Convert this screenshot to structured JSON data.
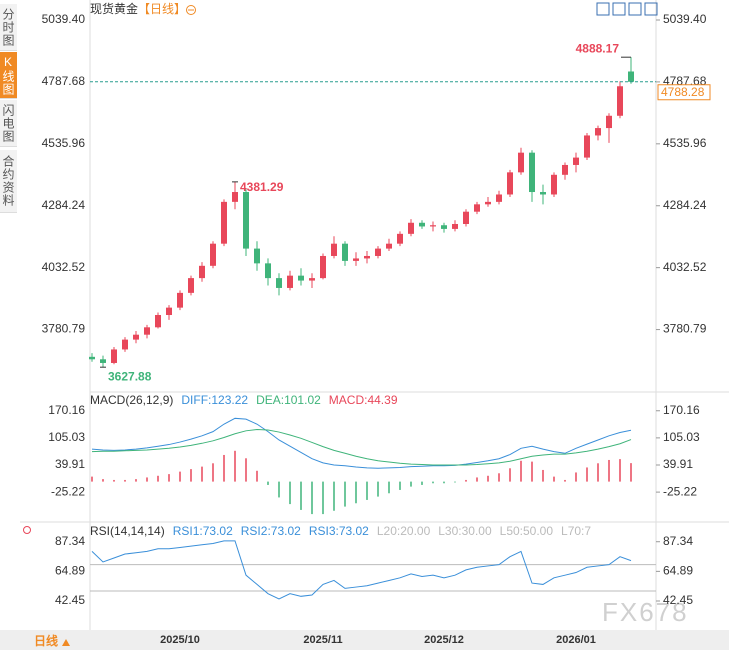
{
  "tabs": [
    "分时图",
    "K线图",
    "闪电图",
    "合约资料"
  ],
  "period_button": "日线",
  "watermark": "FX678",
  "chart_data": [
    {
      "type": "candlestick",
      "title": "现货黄金",
      "subtitle": "【日线】",
      "categories": [
        null,
        null,
        null,
        null,
        null,
        null,
        null,
        null,
        "2025/10",
        null,
        null,
        null,
        null,
        null,
        null,
        null,
        null,
        null,
        null,
        null,
        null,
        "2025/11",
        null,
        null,
        null,
        null,
        null,
        null,
        null,
        null,
        null,
        null,
        "2025/12",
        null,
        null,
        null,
        null,
        null,
        null,
        null,
        null,
        null,
        null,
        null,
        "2026/01",
        null,
        null,
        null,
        null,
        null
      ],
      "candles": [
        [
          3670,
          3685,
          3650,
          3660
        ],
        [
          3660,
          3675,
          3627.88,
          3645
        ],
        [
          3645,
          3710,
          3640,
          3700
        ],
        [
          3700,
          3750,
          3690,
          3740
        ],
        [
          3740,
          3775,
          3725,
          3760
        ],
        [
          3760,
          3800,
          3745,
          3790
        ],
        [
          3790,
          3850,
          3785,
          3840
        ],
        [
          3840,
          3880,
          3820,
          3870
        ],
        [
          3870,
          3940,
          3860,
          3930
        ],
        [
          3930,
          4000,
          3920,
          3990
        ],
        [
          3990,
          4055,
          3975,
          4040
        ],
        [
          4040,
          4140,
          4030,
          4130
        ],
        [
          4130,
          4310,
          4120,
          4300
        ],
        [
          4300,
          4381.29,
          4270,
          4340
        ],
        [
          4340,
          4350,
          4080,
          4110
        ],
        [
          4110,
          4140,
          4020,
          4050
        ],
        [
          4050,
          4070,
          3960,
          3990
        ],
        [
          3990,
          4010,
          3920,
          3950
        ],
        [
          3950,
          4020,
          3940,
          4000
        ],
        [
          4000,
          4030,
          3960,
          3980
        ],
        [
          3980,
          4010,
          3950,
          3990
        ],
        [
          3990,
          4090,
          3985,
          4080
        ],
        [
          4080,
          4160,
          4070,
          4130
        ],
        [
          4130,
          4140,
          4040,
          4060
        ],
        [
          4060,
          4095,
          4040,
          4070
        ],
        [
          4070,
          4100,
          4050,
          4080
        ],
        [
          4080,
          4120,
          4070,
          4110
        ],
        [
          4110,
          4150,
          4100,
          4130
        ],
        [
          4130,
          4180,
          4120,
          4170
        ],
        [
          4170,
          4230,
          4160,
          4215
        ],
        [
          4215,
          4225,
          4190,
          4200
        ],
        [
          4200,
          4220,
          4180,
          4205
        ],
        [
          4205,
          4215,
          4175,
          4190
        ],
        [
          4190,
          4225,
          4180,
          4210
        ],
        [
          4210,
          4270,
          4200,
          4260
        ],
        [
          4260,
          4300,
          4250,
          4290
        ],
        [
          4290,
          4320,
          4280,
          4300
        ],
        [
          4300,
          4345,
          4290,
          4330
        ],
        [
          4330,
          4430,
          4320,
          4420
        ],
        [
          4420,
          4520,
          4410,
          4500
        ],
        [
          4500,
          4510,
          4300,
          4340
        ],
        [
          4340,
          4370,
          4290,
          4330
        ],
        [
          4330,
          4420,
          4320,
          4410
        ],
        [
          4410,
          4460,
          4390,
          4450
        ],
        [
          4450,
          4500,
          4420,
          4480
        ],
        [
          4480,
          4580,
          4470,
          4570
        ],
        [
          4570,
          4610,
          4550,
          4600
        ],
        [
          4600,
          4660,
          4540,
          4650
        ],
        [
          4650,
          4790,
          4640,
          4770
        ],
        [
          4830,
          4888.17,
          4780,
          4788.28
        ]
      ],
      "up_color": "#e8475a",
      "down_color": "#3fb47a",
      "annotations": [
        4888.17,
        4381.29,
        3627.88
      ],
      "last_price": 4788.28,
      "last_price_color": "#2a9d8f",
      "ylim": [
        3527,
        5080
      ],
      "yticks": [
        {
          "value": 5039.4,
          "label": "5039.40"
        },
        4787.68,
        4535.96,
        4284.24,
        4032.52,
        3780.79
      ]
    },
    {
      "type": "macd",
      "title": "MACD(26,12,9)",
      "series": [
        {
          "name": "DIFF:123.22",
          "color": "#3a8fd9",
          "values": [
            78,
            76,
            75,
            76,
            78,
            81,
            85,
            89,
            95,
            102,
            110,
            120,
            138,
            152,
            150,
            138,
            120,
            100,
            85,
            70,
            55,
            45,
            40,
            38,
            35,
            33,
            32,
            33,
            34,
            36,
            37,
            38,
            38,
            39,
            42,
            46,
            50,
            55,
            65,
            80,
            85,
            78,
            72,
            68,
            80,
            90,
            100,
            110,
            118,
            123.22
          ]
        },
        {
          "name": "DEA:101.02",
          "color": "#3fb47a",
          "values": [
            72,
            73,
            73,
            74,
            75,
            76,
            78,
            80,
            83,
            87,
            92,
            98,
            106,
            115,
            122,
            125,
            124,
            119,
            112,
            104,
            94,
            84,
            75,
            68,
            61,
            55,
            50,
            47,
            44,
            42,
            41,
            40,
            40,
            40,
            40,
            41,
            43,
            45,
            49,
            55,
            61,
            64,
            66,
            66,
            69,
            73,
            78,
            84,
            91,
            101.02
          ]
        },
        {
          "name": "MACD:44.39",
          "color": "#e8475a",
          "down_color": "#3fb47a",
          "values": [
            12,
            6,
            4,
            4,
            6,
            10,
            14,
            18,
            24,
            30,
            36,
            44,
            64,
            74,
            56,
            26,
            -8,
            -38,
            -54,
            -68,
            -78,
            -78,
            -70,
            -60,
            -52,
            -44,
            -36,
            -28,
            -20,
            -12,
            -8,
            -4,
            -4,
            -2,
            4,
            10,
            14,
            20,
            32,
            50,
            48,
            28,
            12,
            4,
            22,
            34,
            44,
            52,
            54,
            44.39
          ]
        }
      ],
      "ylim": [
        -97,
        208
      ],
      "yticks": [
        170.16,
        105.03,
        39.91,
        -25.22
      ]
    },
    {
      "type": "rsi",
      "title": "RSI(14,14,14)",
      "series": [
        {
          "name": "RSI1:73.02",
          "color": "#3a8fd9",
          "values": [
            80,
            72,
            75,
            78,
            79,
            80,
            82,
            82,
            83,
            84,
            85,
            86,
            88,
            88,
            62,
            55,
            48,
            44,
            48,
            46,
            47,
            55,
            58,
            52,
            53,
            54,
            56,
            58,
            60,
            63,
            61,
            62,
            60,
            62,
            66,
            68,
            69,
            70,
            76,
            80,
            56,
            55,
            60,
            62,
            64,
            68,
            69,
            70,
            76,
            73.02
          ]
        }
      ],
      "legend_extra": [
        "RSI2:73.02",
        "RSI3:73.02",
        "L20:20.00",
        "L30:30.00",
        "L50:50.00",
        "L70:7"
      ],
      "legend_extra_colors": [
        "#3a8fd9",
        "#3a8fd9",
        "#bbbbbb",
        "#bbbbbb",
        "#bbbbbb",
        "#bbbbbb"
      ],
      "levels": [
        50,
        70
      ],
      "ylim": [
        22,
        100
      ],
      "yticks": [
        87.34,
        64.89,
        42.45
      ]
    }
  ]
}
